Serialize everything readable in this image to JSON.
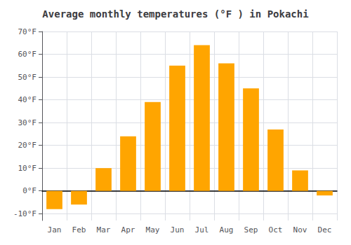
{
  "chart_data": {
    "type": "bar",
    "title": "Average monthly temperatures (°F ) in Pokachi",
    "categories": [
      "Jan",
      "Feb",
      "Mar",
      "Apr",
      "May",
      "Jun",
      "Jul",
      "Aug",
      "Sep",
      "Oct",
      "Nov",
      "Dec"
    ],
    "values": [
      -8,
      -6,
      10,
      24,
      39,
      55,
      64,
      56,
      45,
      27,
      9,
      -2
    ],
    "color": "#FFA500",
    "ylim": [
      -13,
      70
    ],
    "yticks": [
      {
        "value": -10,
        "label": "-10°F"
      },
      {
        "value": 0,
        "label": "0°F"
      },
      {
        "value": 10,
        "label": "10°F"
      },
      {
        "value": 20,
        "label": "20°F"
      },
      {
        "value": 30,
        "label": "30°F"
      },
      {
        "value": 40,
        "label": "40°F"
      },
      {
        "value": 50,
        "label": "50°F"
      },
      {
        "value": 60,
        "label": "60°F"
      },
      {
        "value": 70,
        "label": "70°F"
      }
    ],
    "grid": true
  }
}
